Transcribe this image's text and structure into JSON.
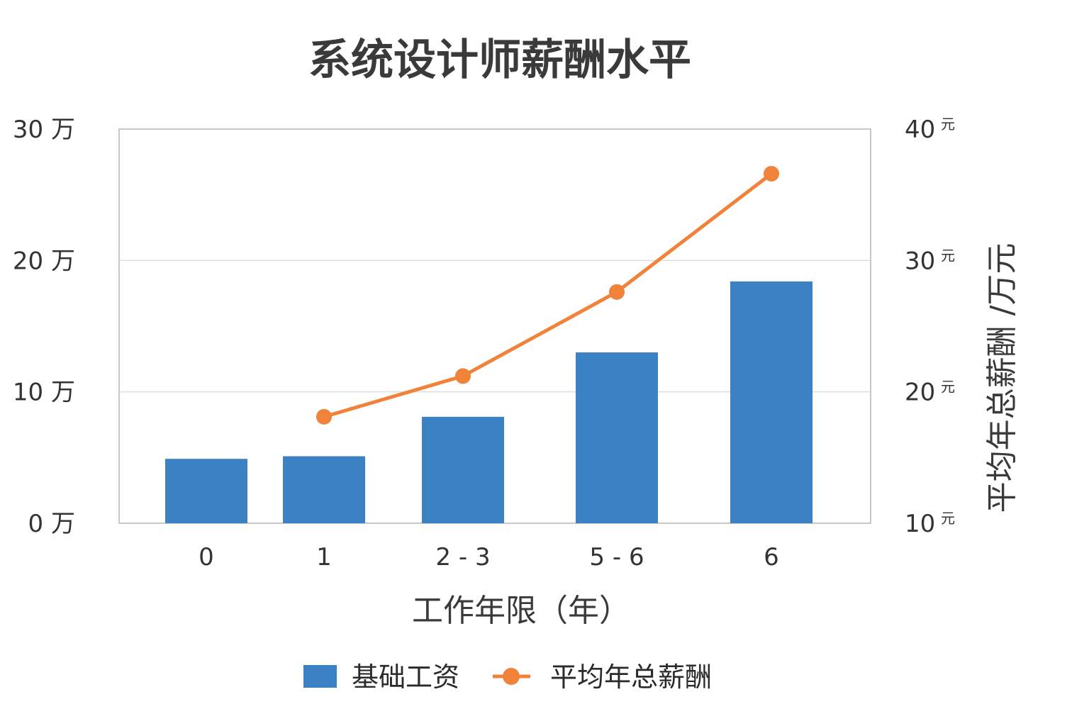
{
  "chart_data": {
    "type": "bar",
    "title": "系统设计师薪酬水平",
    "xlabel": "工作年限（年）",
    "ylabel": "",
    "ylabel_right": "平均年总薪酬 /万元",
    "categories": [
      "0",
      "1",
      "2 - 3",
      "5 - 6",
      "6"
    ],
    "ylim": [
      0,
      30
    ],
    "ylim_right": [
      10,
      40
    ],
    "y_ticks": [
      {
        "value": 0,
        "label": "0 万"
      },
      {
        "value": 10,
        "label": "10 万"
      },
      {
        "value": 20,
        "label": "20 万"
      },
      {
        "value": 30,
        "label": "30 万"
      }
    ],
    "y_ticks_right": [
      {
        "value": 10,
        "label": "10",
        "unit": "元"
      },
      {
        "value": 20,
        "label": "20",
        "unit": "元"
      },
      {
        "value": 30,
        "label": "30",
        "unit": "元"
      },
      {
        "value": 40,
        "label": "40",
        "unit": "元"
      }
    ],
    "grid": true,
    "legend_position": "bottom",
    "series": [
      {
        "name": "基础工资",
        "type": "bar",
        "axis": "left",
        "color": "#3b82c4",
        "values": [
          4.9,
          5.1,
          8.1,
          13.0,
          18.4
        ]
      },
      {
        "name": "平均年总薪酬",
        "type": "line",
        "axis": "right",
        "color": "#f0823a",
        "values": [
          null,
          18.1,
          21.2,
          27.6,
          36.6
        ]
      }
    ]
  }
}
